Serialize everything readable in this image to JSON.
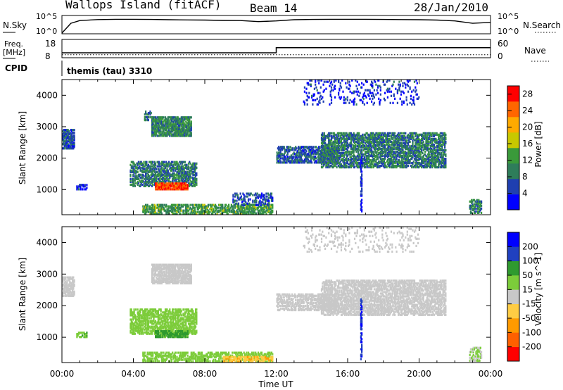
{
  "header": {
    "station": "Wallops Island (fitACF)",
    "beam": "Beam 14",
    "date": "28/Jan/2010"
  },
  "top_strip": {
    "nsky_label": "N.Sky",
    "nsky_ticks": [
      "10^5",
      "10^0"
    ],
    "nsearch_label": "N.Search",
    "nsearch_ticks": [
      "10^5",
      "10^0"
    ],
    "freq_label_lines": [
      "Freq.",
      "[MHz]"
    ],
    "freq_ticks": [
      "18",
      "8"
    ],
    "nave_label": "Nave",
    "nave_ticks": [
      "60",
      "0"
    ],
    "cpid_label": "CPID",
    "cpid_value": "themis (tau) 3310"
  },
  "axes": {
    "ylabel": "Slant Range [km]",
    "yticks": [
      "4000",
      "3000",
      "2000",
      "1000"
    ],
    "xticks": [
      "00:00",
      "04:00",
      "08:00",
      "12:00",
      "16:00",
      "20:00",
      "00:00"
    ],
    "xlabel": "Time UT"
  },
  "colors": {
    "power": [
      "#0000ff",
      "#1f3fb0",
      "#2e7d5a",
      "#3a9a3a",
      "#c8c800",
      "#ffaa00",
      "#ff6600",
      "#ff0000"
    ],
    "velocity": [
      "#ff0000",
      "#ff6000",
      "#ff9a00",
      "#ffcc44",
      "#c8c8c8",
      "#7ccc3a",
      "#2f9a2f",
      "#2040c0",
      "#0000ff"
    ],
    "ground_scatter": "#c8c8c8"
  },
  "chart_data": [
    {
      "type": "line",
      "panel": "N.Sky noise",
      "scale": "log",
      "ylim": [
        1,
        100000
      ],
      "xlim_hours": [
        0,
        24
      ],
      "series": [
        {
          "x": [
            0.0,
            0.5,
            1,
            2,
            3,
            4,
            5,
            6,
            7,
            8,
            9,
            10,
            11,
            12,
            13,
            14,
            15,
            16,
            17,
            18,
            19,
            20,
            21,
            22,
            23,
            24
          ],
          "y": [
            1,
            800,
            5000,
            10000,
            12000,
            12000,
            11000,
            9000,
            8000,
            7000,
            5500,
            5000,
            2500,
            4000,
            9000,
            11000,
            12000,
            12000,
            12000,
            11000,
            10000,
            9000,
            7000,
            4000,
            800,
            1500
          ]
        }
      ]
    },
    {
      "type": "line",
      "panel": "Freq and Nave",
      "freq_ylim": [
        8,
        18
      ],
      "freq": {
        "x": [
          0,
          12,
          12,
          24
        ],
        "y": [
          10.5,
          10.5,
          13.5,
          13.5
        ]
      },
      "nave_ylim": [
        0,
        60
      ],
      "nave": {
        "x": [
          0,
          12,
          12,
          24
        ],
        "y": [
          8,
          8,
          8,
          8
        ]
      }
    },
    {
      "type": "heatmap",
      "panel": "power",
      "xlabel": "Time UT",
      "ylabel": "Slant Range [km]",
      "xlim_hours": [
        0,
        24
      ],
      "ylim": [
        200,
        4500
      ],
      "colorbar_label": "Power [dB]",
      "colorbar_ticks": [
        "28",
        "24",
        "20",
        "16",
        "12",
        "8",
        "4"
      ],
      "colorbar_range": [
        0,
        30
      ],
      "regions": [
        {
          "t0": 0.0,
          "t1": 0.7,
          "r0": 2300,
          "r1": 2900,
          "val": 6,
          "density": 0.7,
          "seed": 1
        },
        {
          "t0": 0.8,
          "t1": 1.4,
          "r0": 1000,
          "r1": 1150,
          "val": 4,
          "density": 0.55,
          "seed": 2
        },
        {
          "t0": 4.6,
          "t1": 5.0,
          "r0": 3200,
          "r1": 3500,
          "val": 8,
          "density": 0.4,
          "seed": 3
        },
        {
          "t0": 5.0,
          "t1": 7.2,
          "r0": 2700,
          "r1": 3300,
          "val": 10,
          "density": 0.75,
          "seed": 4
        },
        {
          "t0": 3.8,
          "t1": 7.5,
          "r0": 1100,
          "r1": 1900,
          "val": 9,
          "density": 0.55,
          "seed": 5
        },
        {
          "t0": 5.2,
          "t1": 7.0,
          "r0": 1000,
          "r1": 1200,
          "val": 26,
          "density": 0.8,
          "seed": 6
        },
        {
          "t0": 4.5,
          "t1": 11.8,
          "r0": 230,
          "r1": 520,
          "val": 12,
          "density": 0.55,
          "seed": 7
        },
        {
          "t0": 9.5,
          "t1": 11.8,
          "r0": 500,
          "r1": 900,
          "val": 6,
          "density": 0.35,
          "seed": 8
        },
        {
          "t0": 12.0,
          "t1": 15.5,
          "r0": 1850,
          "r1": 2350,
          "val": 7,
          "density": 0.55,
          "seed": 9
        },
        {
          "t0": 14.5,
          "t1": 21.5,
          "r0": 1700,
          "r1": 2800,
          "val": 9,
          "density": 0.6,
          "seed": 10
        },
        {
          "t0": 13.5,
          "t1": 20.0,
          "r0": 3700,
          "r1": 4500,
          "val": 4,
          "density": 0.12,
          "seed": 11
        },
        {
          "t0": 16.7,
          "t1": 16.8,
          "r0": 300,
          "r1": 2200,
          "val": 4,
          "density": 0.6,
          "seed": 12
        },
        {
          "t0": 22.8,
          "t1": 23.5,
          "r0": 250,
          "r1": 700,
          "val": 10,
          "density": 0.5,
          "seed": 13
        }
      ]
    },
    {
      "type": "heatmap",
      "panel": "velocity",
      "xlabel": "Time UT",
      "ylabel": "Slant Range [km]",
      "xlim_hours": [
        0,
        24
      ],
      "ylim": [
        200,
        4500
      ],
      "colorbar_label": "Velocity [m s^-1]",
      "colorbar_ticks": [
        "200",
        "100",
        "50",
        "15",
        "-15",
        "-50",
        "-100",
        "-200"
      ],
      "colorbar_range": [
        -250,
        250
      ],
      "regions": [
        {
          "t0": 0.0,
          "t1": 0.7,
          "r0": 2300,
          "r1": 2900,
          "val": 0,
          "density": 0.7,
          "seed": 21
        },
        {
          "t0": 0.8,
          "t1": 1.4,
          "r0": 1000,
          "r1": 1150,
          "val": 40,
          "density": 0.55,
          "seed": 22
        },
        {
          "t0": 5.0,
          "t1": 7.2,
          "r0": 2700,
          "r1": 3300,
          "val": 0,
          "density": 0.75,
          "seed": 24
        },
        {
          "t0": 3.8,
          "t1": 7.5,
          "r0": 1100,
          "r1": 1900,
          "val": 30,
          "density": 0.6,
          "seed": 25
        },
        {
          "t0": 5.2,
          "t1": 7.0,
          "r0": 1000,
          "r1": 1200,
          "val": 60,
          "density": 0.8,
          "seed": 26
        },
        {
          "t0": 4.5,
          "t1": 11.8,
          "r0": 230,
          "r1": 520,
          "val": 35,
          "density": 0.55,
          "seed": 27
        },
        {
          "t0": 9.0,
          "t1": 11.8,
          "r0": 230,
          "r1": 400,
          "val": -40,
          "density": 0.5,
          "seed": 28
        },
        {
          "t0": 12.0,
          "t1": 15.5,
          "r0": 1850,
          "r1": 2350,
          "val": 0,
          "density": 0.55,
          "seed": 29
        },
        {
          "t0": 14.5,
          "t1": 21.5,
          "r0": 1700,
          "r1": 2800,
          "val": 0,
          "density": 0.6,
          "seed": 30
        },
        {
          "t0": 13.5,
          "t1": 20.0,
          "r0": 3700,
          "r1": 4500,
          "val": 0,
          "density": 0.1,
          "seed": 31
        },
        {
          "t0": 16.7,
          "t1": 16.8,
          "r0": 300,
          "r1": 2200,
          "val": 200,
          "density": 0.6,
          "seed": 32
        },
        {
          "t0": 22.8,
          "t1": 23.5,
          "r0": 250,
          "r1": 700,
          "val": 20,
          "density": 0.5,
          "seed": 33
        }
      ]
    }
  ]
}
